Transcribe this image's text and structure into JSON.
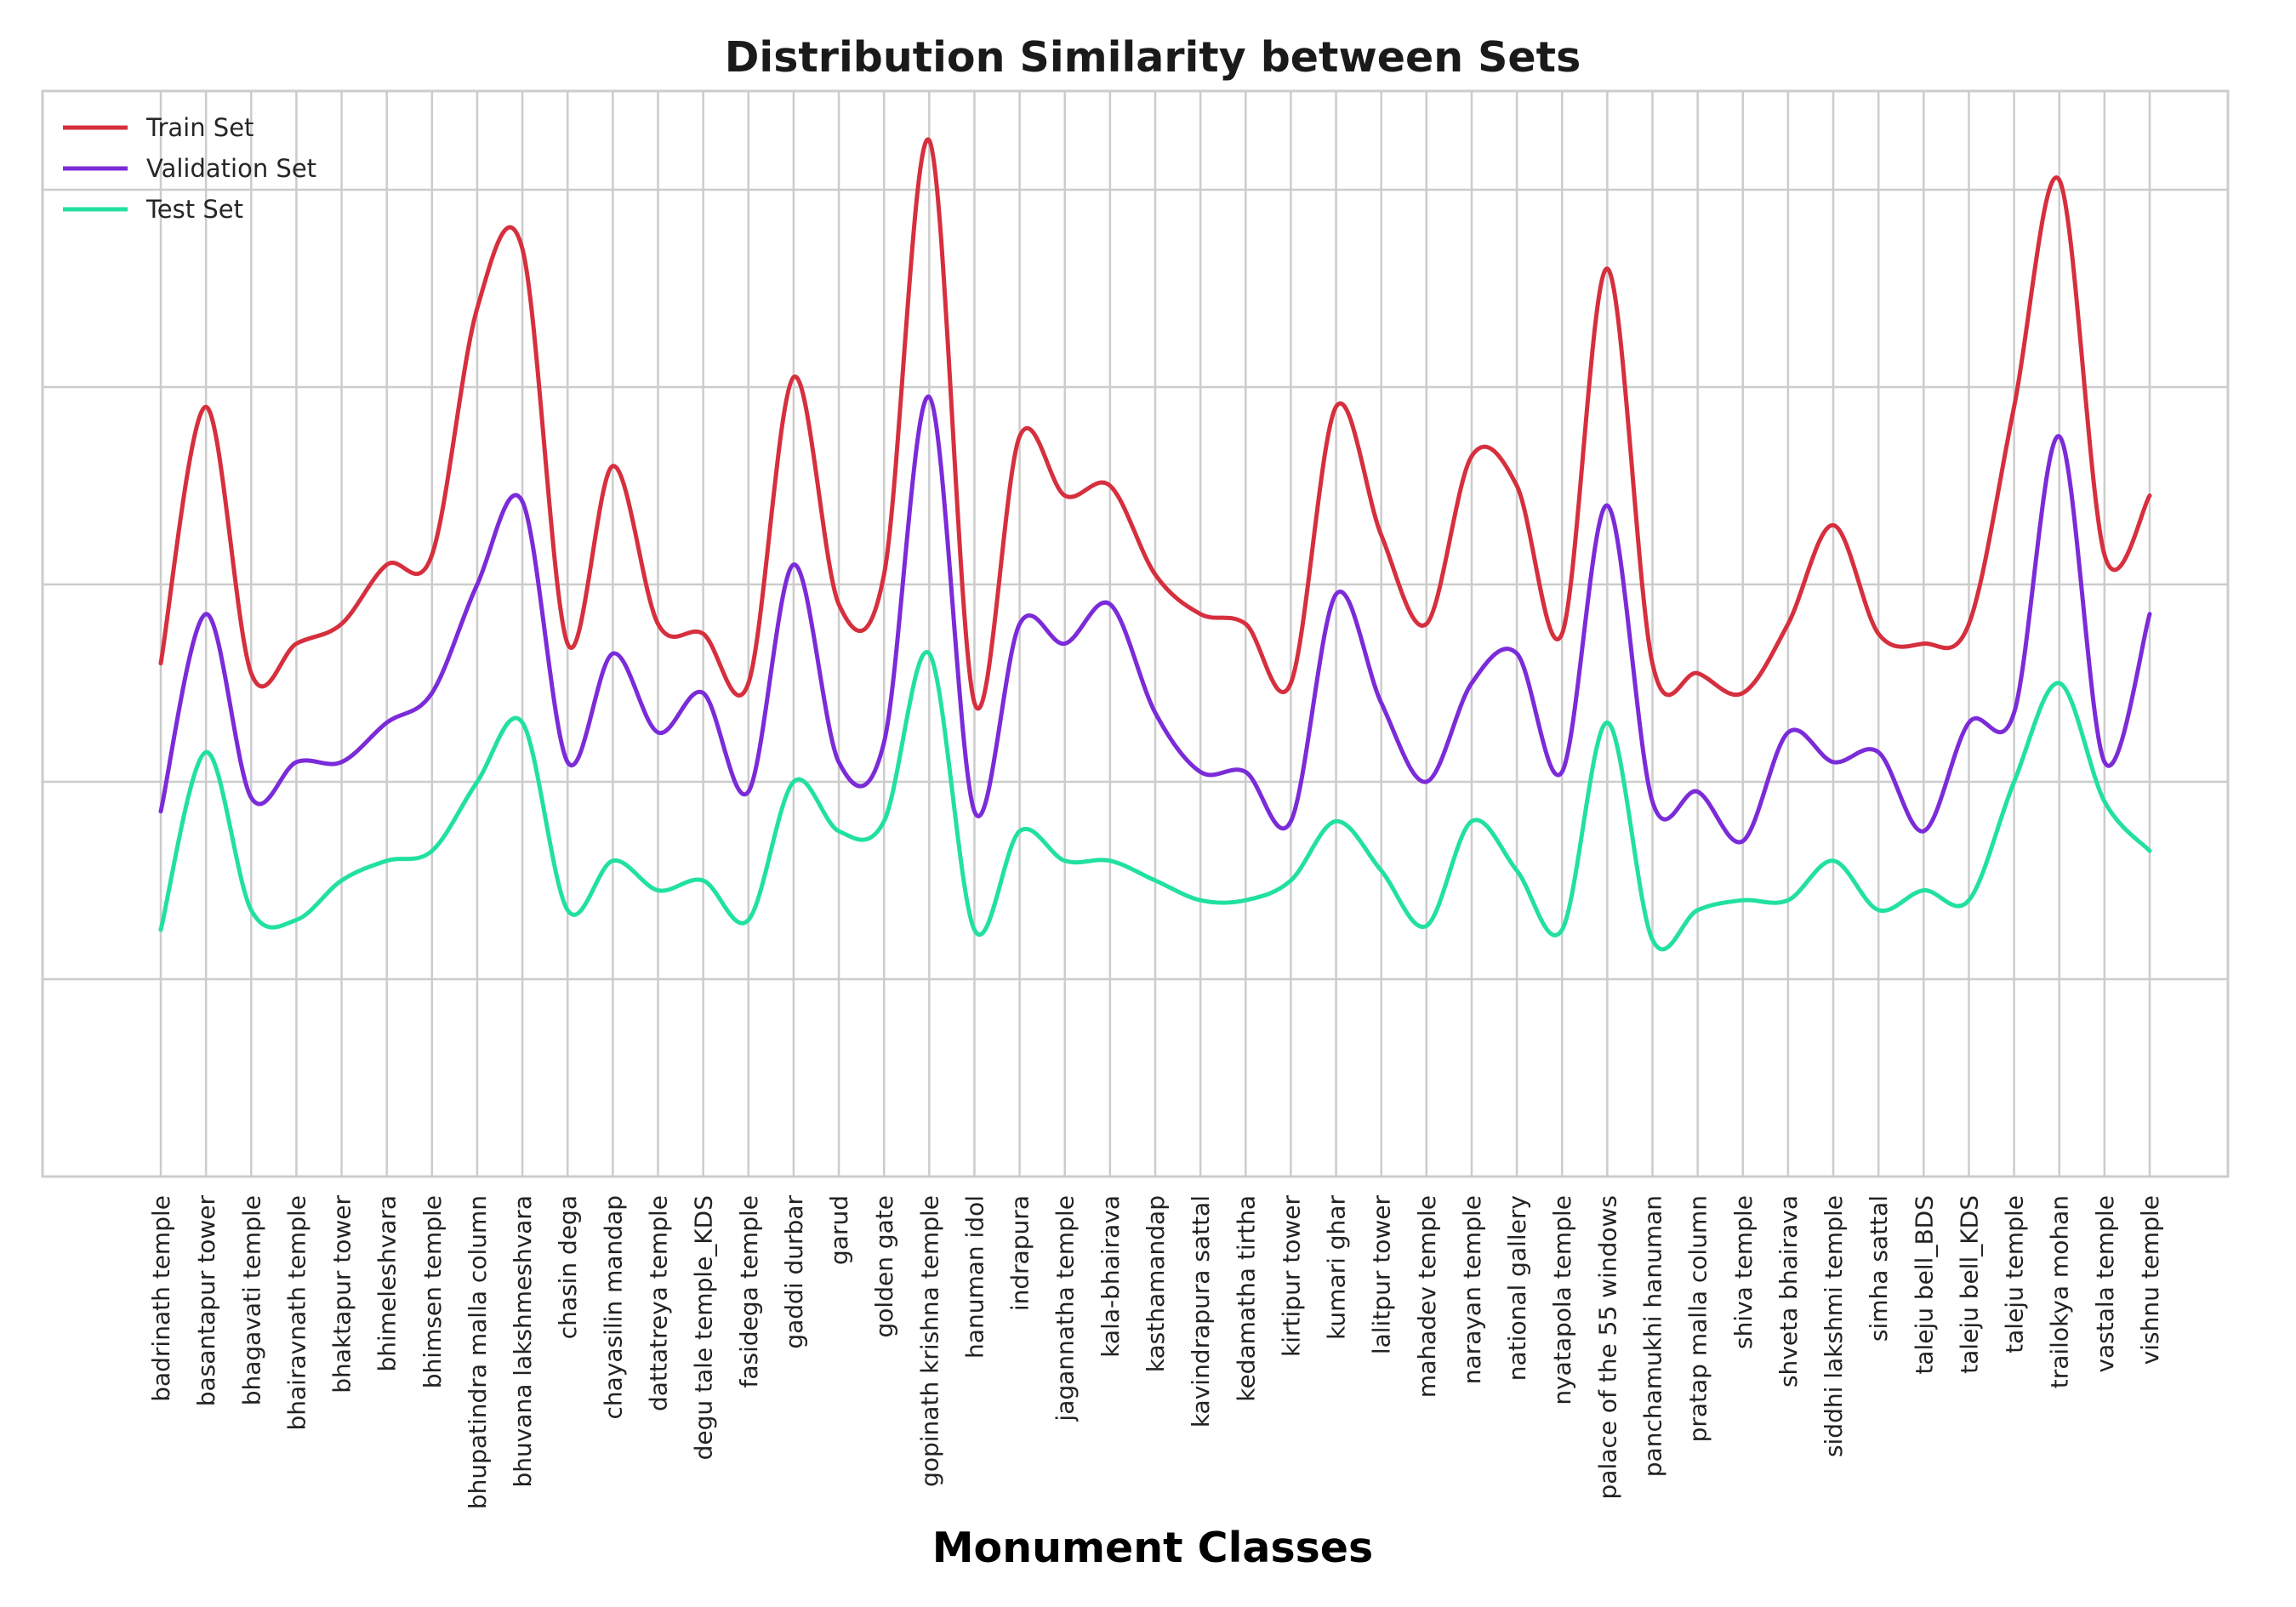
{
  "chart_data": {
    "type": "line",
    "title": "Distribution Similarity between Sets",
    "xlabel": "Monument Classes",
    "ylabel": "",
    "ylim": [
      0,
      5.5
    ],
    "grid": true,
    "legend_position": "top-left",
    "smoothed": true,
    "y_units": "relative (no y tick labels printed; values read against gridlines)",
    "categories": [
      "badrinath temple",
      "basantapur tower",
      "bhagavati temple",
      "bhairavnath temple",
      "bhaktapur tower",
      "bhimeleshvara",
      "bhimsen temple",
      "bhupatindra malla column",
      "bhuvana lakshmeshvara",
      "chasin dega",
      "chayasilin mandap",
      "dattatreya temple",
      "degu tale temple_KDS",
      "fasidega temple",
      "gaddi durbar",
      "garud",
      "golden gate",
      "gopinath krishna temple",
      "hanuman idol",
      "indrapura",
      "jagannatha temple",
      "kala-bhairava",
      "kasthamandap",
      "kavindrapura sattal",
      "kedamatha tirtha",
      "kirtipur tower",
      "kumari ghar",
      "lalitpur tower",
      "mahadev temple",
      "narayan temple",
      "national gallery",
      "nyatapola temple",
      "palace of the 55 windows",
      "panchamukhi hanuman",
      "pratap malla column",
      "shiva temple",
      "shveta bhairava",
      "siddhi lakshmi temple",
      "simha sattal",
      "taleju bell_BDS",
      "taleju bell_KDS",
      "taleju temple",
      "trailokya mohan",
      "vastala temple",
      "vishnu temple"
    ],
    "series": [
      {
        "name": "Train Set",
        "color": "#d62f3e",
        "values": [
          2.6,
          3.9,
          2.55,
          2.7,
          2.8,
          3.1,
          3.15,
          4.4,
          4.7,
          2.7,
          3.6,
          2.8,
          2.75,
          2.5,
          4.05,
          2.9,
          3.05,
          5.25,
          2.4,
          3.75,
          3.45,
          3.5,
          3.05,
          2.85,
          2.8,
          2.5,
          3.9,
          3.25,
          2.8,
          3.65,
          3.5,
          2.75,
          4.6,
          2.6,
          2.55,
          2.45,
          2.8,
          3.3,
          2.75,
          2.7,
          2.8,
          3.9,
          5.05,
          3.15,
          3.45
        ]
      },
      {
        "name": "Validation Set",
        "color": "#7b2bd8",
        "values": [
          1.85,
          2.85,
          1.92,
          2.1,
          2.1,
          2.3,
          2.45,
          3.0,
          3.42,
          2.1,
          2.65,
          2.25,
          2.45,
          1.95,
          3.1,
          2.1,
          2.2,
          3.95,
          1.85,
          2.8,
          2.7,
          2.9,
          2.35,
          2.05,
          2.05,
          1.8,
          2.95,
          2.4,
          2.0,
          2.5,
          2.65,
          2.05,
          3.4,
          1.9,
          1.95,
          1.7,
          2.25,
          2.1,
          2.15,
          1.75,
          2.3,
          2.35,
          3.75,
          2.1,
          2.85
        ]
      },
      {
        "name": "Test Set",
        "color": "#22e0a2",
        "values": [
          1.25,
          2.15,
          1.35,
          1.3,
          1.5,
          1.6,
          1.65,
          2.0,
          2.3,
          1.35,
          1.6,
          1.45,
          1.5,
          1.3,
          2.0,
          1.75,
          1.8,
          2.65,
          1.25,
          1.75,
          1.6,
          1.6,
          1.5,
          1.4,
          1.4,
          1.5,
          1.8,
          1.55,
          1.27,
          1.8,
          1.55,
          1.25,
          2.3,
          1.2,
          1.35,
          1.4,
          1.4,
          1.6,
          1.35,
          1.45,
          1.4,
          2.0,
          2.5,
          1.9,
          1.65
        ]
      }
    ]
  }
}
